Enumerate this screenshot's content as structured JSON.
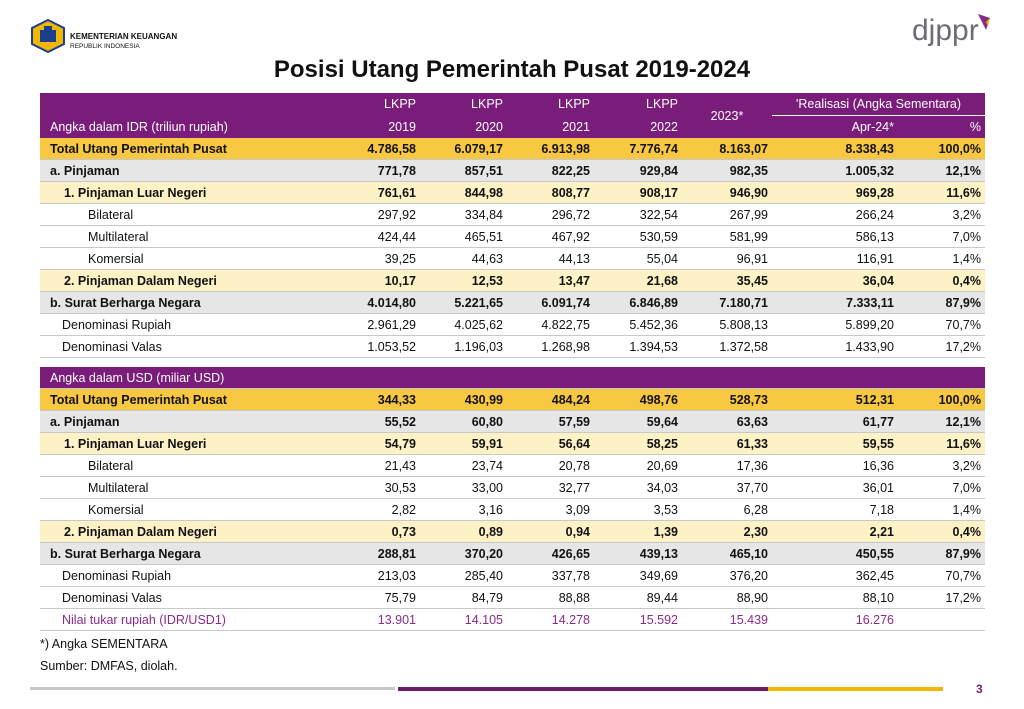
{
  "header": {
    "org": "KEMENTERIAN KEUANGAN",
    "org_sub": "REPUBLIK INDONESIA",
    "brand": "djppr",
    "title": "Posisi Utang Pemerintah Pusat 2019-2024"
  },
  "table": {
    "head_top": [
      "LKPP",
      "LKPP",
      "LKPP",
      "LKPP",
      "2023*",
      "'Realisasi (Angka Sementara)"
    ],
    "head_bottom": [
      "Angka dalam IDR (triliun rupiah)",
      "2019",
      "2020",
      "2021",
      "2022",
      "Apr-24*",
      "%"
    ],
    "idr_rows": [
      [
        "Total Utang Pemerintah Pusat",
        "4.786,58",
        "6.079,17",
        "6.913,98",
        "7.776,74",
        "8.163,07",
        "8.338,43",
        "100,0%"
      ],
      [
        "a. Pinjaman",
        "771,78",
        "857,51",
        "822,25",
        "929,84",
        "982,35",
        "1.005,32",
        "12,1%"
      ],
      [
        "1. Pinjaman Luar Negeri",
        "761,61",
        "844,98",
        "808,77",
        "908,17",
        "946,90",
        "969,28",
        "11,6%"
      ],
      [
        "Bilateral",
        "297,92",
        "334,84",
        "296,72",
        "322,54",
        "267,99",
        "266,24",
        "3,2%"
      ],
      [
        "Multilateral",
        "424,44",
        "465,51",
        "467,92",
        "530,59",
        "581,99",
        "586,13",
        "7,0%"
      ],
      [
        "Komersial",
        "39,25",
        "44,63",
        "44,13",
        "55,04",
        "96,91",
        "116,91",
        "1,4%"
      ],
      [
        "2. Pinjaman Dalam Negeri",
        "10,17",
        "12,53",
        "13,47",
        "21,68",
        "35,45",
        "36,04",
        "0,4%"
      ],
      [
        "b. Surat Berharga Negara",
        "4.014,80",
        "5.221,65",
        "6.091,74",
        "6.846,89",
        "7.180,71",
        "7.333,11",
        "87,9%"
      ],
      [
        "Denominasi Rupiah",
        "2.961,29",
        "4.025,62",
        "4.822,75",
        "5.452,36",
        "5.808,13",
        "5.899,20",
        "70,7%"
      ],
      [
        "Denominasi Valas",
        "1.053,52",
        "1.196,03",
        "1.268,98",
        "1.394,53",
        "1.372,58",
        "1.433,90",
        "17,2%"
      ]
    ],
    "usd_title": "Angka dalam USD (miliar USD)",
    "usd_rows": [
      [
        "Total Utang Pemerintah Pusat",
        "344,33",
        "430,99",
        "484,24",
        "498,76",
        "528,73",
        "512,31",
        "100,0%"
      ],
      [
        "a. Pinjaman",
        "55,52",
        "60,80",
        "57,59",
        "59,64",
        "63,63",
        "61,77",
        "12,1%"
      ],
      [
        "1. Pinjaman Luar Negeri",
        "54,79",
        "59,91",
        "56,64",
        "58,25",
        "61,33",
        "59,55",
        "11,6%"
      ],
      [
        "Bilateral",
        "21,43",
        "23,74",
        "20,78",
        "20,69",
        "17,36",
        "16,36",
        "3,2%"
      ],
      [
        "Multilateral",
        "30,53",
        "33,00",
        "32,77",
        "34,03",
        "37,70",
        "36,01",
        "7,0%"
      ],
      [
        "Komersial",
        "2,82",
        "3,16",
        "3,09",
        "3,53",
        "6,28",
        "7,18",
        "1,4%"
      ],
      [
        "2. Pinjaman Dalam Negeri",
        "0,73",
        "0,89",
        "0,94",
        "1,39",
        "2,30",
        "2,21",
        "0,4%"
      ],
      [
        "b. Surat Berharga Negara",
        "288,81",
        "370,20",
        "426,65",
        "439,13",
        "465,10",
        "450,55",
        "87,9%"
      ],
      [
        "Denominasi Rupiah",
        "213,03",
        "285,40",
        "337,78",
        "349,69",
        "376,20",
        "362,45",
        "70,7%"
      ],
      [
        "Denominasi Valas",
        "75,79",
        "84,79",
        "88,88",
        "89,44",
        "88,90",
        "88,10",
        "17,2%"
      ]
    ],
    "rate_row": [
      "Nilai tukar rupiah (IDR/USD1)",
      "13.901",
      "14.105",
      "14.278",
      "15.592",
      "15.439",
      "16.276"
    ]
  },
  "footnotes": [
    "*) Angka SEMENTARA",
    "Sumber: DMFAS, diolah."
  ],
  "page_number": "3"
}
